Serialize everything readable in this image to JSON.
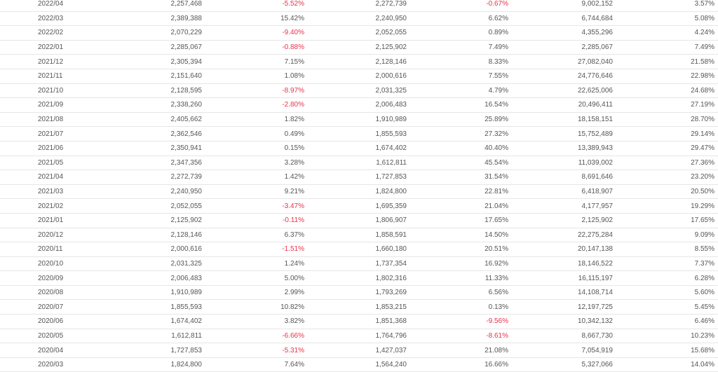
{
  "colors": {
    "negative": "#e8324a",
    "text": "#555555",
    "border": "#e6e6e6"
  },
  "rows": [
    {
      "month": "2022/04",
      "v1": "2,257,468",
      "p1": "-5.52%",
      "v2": "2,272,739",
      "p2": "-0.67%",
      "v3": "9,002,152",
      "p3": "3.57%"
    },
    {
      "month": "2022/03",
      "v1": "2,389,388",
      "p1": "15.42%",
      "v2": "2,240,950",
      "p2": "6.62%",
      "v3": "6,744,684",
      "p3": "5.08%"
    },
    {
      "month": "2022/02",
      "v1": "2,070,229",
      "p1": "-9.40%",
      "v2": "2,052,055",
      "p2": "0.89%",
      "v3": "4,355,296",
      "p3": "4.24%"
    },
    {
      "month": "2022/01",
      "v1": "2,285,067",
      "p1": "-0.88%",
      "v2": "2,125,902",
      "p2": "7.49%",
      "v3": "2,285,067",
      "p3": "7.49%"
    },
    {
      "month": "2021/12",
      "v1": "2,305,394",
      "p1": "7.15%",
      "v2": "2,128,146",
      "p2": "8.33%",
      "v3": "27,082,040",
      "p3": "21.58%"
    },
    {
      "month": "2021/11",
      "v1": "2,151,640",
      "p1": "1.08%",
      "v2": "2,000,616",
      "p2": "7.55%",
      "v3": "24,776,646",
      "p3": "22.98%"
    },
    {
      "month": "2021/10",
      "v1": "2,128,595",
      "p1": "-8.97%",
      "v2": "2,031,325",
      "p2": "4.79%",
      "v3": "22,625,006",
      "p3": "24.68%"
    },
    {
      "month": "2021/09",
      "v1": "2,338,260",
      "p1": "-2.80%",
      "v2": "2,006,483",
      "p2": "16.54%",
      "v3": "20,496,411",
      "p3": "27.19%"
    },
    {
      "month": "2021/08",
      "v1": "2,405,662",
      "p1": "1.82%",
      "v2": "1,910,989",
      "p2": "25.89%",
      "v3": "18,158,151",
      "p3": "28.70%"
    },
    {
      "month": "2021/07",
      "v1": "2,362,546",
      "p1": "0.49%",
      "v2": "1,855,593",
      "p2": "27.32%",
      "v3": "15,752,489",
      "p3": "29.14%"
    },
    {
      "month": "2021/06",
      "v1": "2,350,941",
      "p1": "0.15%",
      "v2": "1,674,402",
      "p2": "40.40%",
      "v3": "13,389,943",
      "p3": "29.47%"
    },
    {
      "month": "2021/05",
      "v1": "2,347,356",
      "p1": "3.28%",
      "v2": "1,612,811",
      "p2": "45.54%",
      "v3": "11,039,002",
      "p3": "27.36%"
    },
    {
      "month": "2021/04",
      "v1": "2,272,739",
      "p1": "1.42%",
      "v2": "1,727,853",
      "p2": "31.54%",
      "v3": "8,691,646",
      "p3": "23.20%"
    },
    {
      "month": "2021/03",
      "v1": "2,240,950",
      "p1": "9.21%",
      "v2": "1,824,800",
      "p2": "22.81%",
      "v3": "6,418,907",
      "p3": "20.50%"
    },
    {
      "month": "2021/02",
      "v1": "2,052,055",
      "p1": "-3.47%",
      "v2": "1,695,359",
      "p2": "21.04%",
      "v3": "4,177,957",
      "p3": "19.29%"
    },
    {
      "month": "2021/01",
      "v1": "2,125,902",
      "p1": "-0.11%",
      "v2": "1,806,907",
      "p2": "17.65%",
      "v3": "2,125,902",
      "p3": "17.65%"
    },
    {
      "month": "2020/12",
      "v1": "2,128,146",
      "p1": "6.37%",
      "v2": "1,858,591",
      "p2": "14.50%",
      "v3": "22,275,284",
      "p3": "9.09%"
    },
    {
      "month": "2020/11",
      "v1": "2,000,616",
      "p1": "-1.51%",
      "v2": "1,660,180",
      "p2": "20.51%",
      "v3": "20,147,138",
      "p3": "8.55%"
    },
    {
      "month": "2020/10",
      "v1": "2,031,325",
      "p1": "1.24%",
      "v2": "1,737,354",
      "p2": "16.92%",
      "v3": "18,146,522",
      "p3": "7.37%"
    },
    {
      "month": "2020/09",
      "v1": "2,006,483",
      "p1": "5.00%",
      "v2": "1,802,316",
      "p2": "11.33%",
      "v3": "16,115,197",
      "p3": "6.28%"
    },
    {
      "month": "2020/08",
      "v1": "1,910,989",
      "p1": "2.99%",
      "v2": "1,793,269",
      "p2": "6.56%",
      "v3": "14,108,714",
      "p3": "5.60%"
    },
    {
      "month": "2020/07",
      "v1": "1,855,593",
      "p1": "10.82%",
      "v2": "1,853,215",
      "p2": "0.13%",
      "v3": "12,197,725",
      "p3": "5.45%"
    },
    {
      "month": "2020/06",
      "v1": "1,674,402",
      "p1": "3.82%",
      "v2": "1,851,368",
      "p2": "-9.56%",
      "v3": "10,342,132",
      "p3": "6.46%"
    },
    {
      "month": "2020/05",
      "v1": "1,612,811",
      "p1": "-6.66%",
      "v2": "1,764,796",
      "p2": "-8.61%",
      "v3": "8,667,730",
      "p3": "10.23%"
    },
    {
      "month": "2020/04",
      "v1": "1,727,853",
      "p1": "-5.31%",
      "v2": "1,427,037",
      "p2": "21.08%",
      "v3": "7,054,919",
      "p3": "15.68%"
    },
    {
      "month": "2020/03",
      "v1": "1,824,800",
      "p1": "7.64%",
      "v2": "1,564,240",
      "p2": "16.66%",
      "v3": "5,327,066",
      "p3": "14.04%"
    }
  ]
}
